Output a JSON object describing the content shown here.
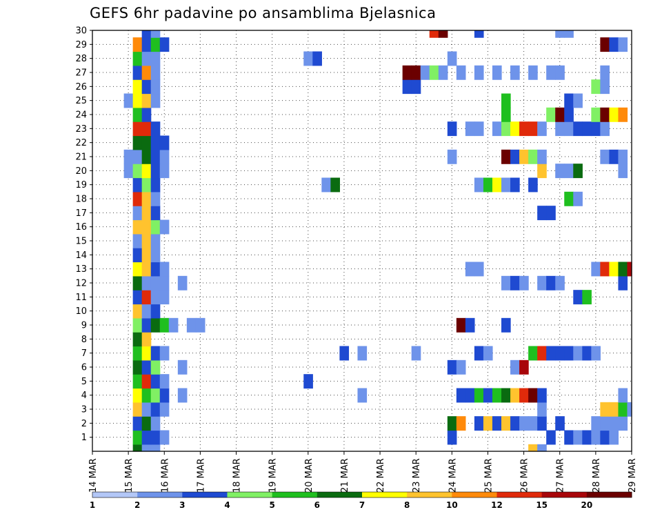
{
  "chart_data": {
    "type": "heatmap",
    "title": "GEFS 6hr padavine po ansamblima Bjelasnica",
    "xlabel": "",
    "ylabel": "",
    "x_tick_labels": [
      "14 MAR",
      "15 MAR",
      "16 MAR",
      "17 MAR",
      "18 MAR",
      "19 MAR",
      "20 MAR",
      "21 MAR",
      "22 MAR",
      "23 MAR",
      "24 MAR",
      "25 MAR",
      "26 MAR",
      "27 MAR",
      "28 MAR",
      "29 MAR"
    ],
    "y_tick_labels": [
      "1",
      "2",
      "3",
      "4",
      "5",
      "6",
      "7",
      "8",
      "9",
      "10",
      "11",
      "12",
      "13",
      "14",
      "15",
      "16",
      "17",
      "18",
      "19",
      "20",
      "21",
      "22",
      "23",
      "24",
      "25",
      "26",
      "27",
      "28",
      "29",
      "30"
    ],
    "xlim_day": [
      14,
      29
    ],
    "ylim_member": [
      0,
      30
    ],
    "time_step_hours": 6,
    "grid": true,
    "colorbar": {
      "placement": "bottom",
      "tick_labels": [
        "1",
        "2",
        "3",
        "4",
        "5",
        "6",
        "7",
        "8",
        "10",
        "12",
        "15",
        "20"
      ],
      "colors": [
        "#b3c7f7",
        "#6e93ea",
        "#1f4ad1",
        "#80f064",
        "#1fbf1f",
        "#0a6b10",
        "#ffff00",
        "#ffc32e",
        "#ff8a0a",
        "#e02a0a",
        "#a8060a",
        "#6b0000"
      ]
    },
    "members": {
      "30": [
        [
          15.5,
          2
        ],
        [
          15.75,
          1
        ],
        [
          23.5,
          9
        ],
        [
          23.75,
          11
        ],
        [
          24.75,
          2
        ],
        [
          27.0,
          1
        ],
        [
          27.25,
          1
        ]
      ],
      "29": [
        [
          15.25,
          8
        ],
        [
          15.5,
          2
        ],
        [
          15.75,
          4
        ],
        [
          16.0,
          2
        ],
        [
          28.25,
          11
        ],
        [
          28.5,
          2
        ],
        [
          28.75,
          1
        ]
      ],
      "28": [
        [
          15.25,
          4
        ],
        [
          15.5,
          1
        ],
        [
          15.75,
          1
        ],
        [
          20.0,
          1
        ],
        [
          20.25,
          2
        ],
        [
          24.0,
          1
        ]
      ],
      "27": [
        [
          15.25,
          2
        ],
        [
          15.5,
          8
        ],
        [
          15.75,
          1
        ],
        [
          22.75,
          11
        ],
        [
          23.0,
          11
        ],
        [
          23.25,
          1
        ],
        [
          23.5,
          3
        ],
        [
          23.75,
          1
        ],
        [
          24.25,
          1
        ],
        [
          24.75,
          1
        ],
        [
          25.25,
          1
        ],
        [
          25.75,
          1
        ],
        [
          26.25,
          1
        ],
        [
          26.75,
          1
        ],
        [
          27.0,
          1
        ],
        [
          28.25,
          1
        ]
      ],
      "26": [
        [
          15.25,
          6
        ],
        [
          15.5,
          2
        ],
        [
          15.75,
          1
        ],
        [
          22.75,
          2
        ],
        [
          23.0,
          2
        ],
        [
          28.0,
          3
        ],
        [
          28.25,
          1
        ]
      ],
      "25": [
        [
          15.0,
          1
        ],
        [
          15.25,
          6
        ],
        [
          15.5,
          7
        ],
        [
          15.75,
          1
        ],
        [
          25.5,
          4
        ],
        [
          27.25,
          2
        ],
        [
          27.5,
          1
        ]
      ],
      "24": [
        [
          15.25,
          4
        ],
        [
          15.5,
          2
        ],
        [
          25.5,
          4
        ],
        [
          26.75,
          3
        ],
        [
          27.0,
          11
        ],
        [
          27.25,
          2
        ],
        [
          28.0,
          3
        ],
        [
          28.25,
          11
        ],
        [
          28.5,
          6
        ],
        [
          28.75,
          8
        ]
      ],
      "23": [
        [
          15.25,
          9
        ],
        [
          15.5,
          9
        ],
        [
          15.75,
          2
        ],
        [
          24.0,
          2
        ],
        [
          24.5,
          1
        ],
        [
          24.75,
          1
        ],
        [
          25.25,
          1
        ],
        [
          25.5,
          3
        ],
        [
          25.75,
          6
        ],
        [
          26.0,
          9
        ],
        [
          26.25,
          9
        ],
        [
          26.5,
          1
        ],
        [
          27.0,
          1
        ],
        [
          27.25,
          1
        ],
        [
          27.5,
          2
        ],
        [
          27.75,
          2
        ],
        [
          28.0,
          2
        ],
        [
          28.25,
          1
        ]
      ],
      "22": [
        [
          15.25,
          5
        ],
        [
          15.5,
          5
        ],
        [
          15.75,
          2
        ],
        [
          16.0,
          2
        ]
      ],
      "21": [
        [
          15.0,
          1
        ],
        [
          15.25,
          1
        ],
        [
          15.5,
          5
        ],
        [
          15.75,
          2
        ],
        [
          16.0,
          1
        ],
        [
          24.0,
          1
        ],
        [
          25.5,
          11
        ],
        [
          25.75,
          2
        ],
        [
          26.0,
          7
        ],
        [
          26.25,
          3
        ],
        [
          26.5,
          1
        ],
        [
          28.25,
          1
        ],
        [
          28.5,
          2
        ],
        [
          28.75,
          1
        ]
      ],
      "20": [
        [
          15.0,
          1
        ],
        [
          15.25,
          3
        ],
        [
          15.5,
          6
        ],
        [
          15.75,
          2
        ],
        [
          16.0,
          1
        ],
        [
          26.5,
          7
        ],
        [
          27.0,
          1
        ],
        [
          27.25,
          1
        ],
        [
          27.5,
          5
        ],
        [
          28.75,
          1
        ]
      ],
      "19": [
        [
          15.25,
          2
        ],
        [
          15.5,
          3
        ],
        [
          15.75,
          2
        ],
        [
          20.5,
          1
        ],
        [
          20.75,
          5
        ],
        [
          24.75,
          1
        ],
        [
          25.0,
          4
        ],
        [
          25.25,
          6
        ],
        [
          25.5,
          1
        ],
        [
          25.75,
          2
        ],
        [
          26.25,
          2
        ]
      ],
      "18": [
        [
          15.25,
          9
        ],
        [
          15.5,
          7
        ],
        [
          15.75,
          1
        ],
        [
          27.25,
          4
        ],
        [
          27.5,
          1
        ]
      ],
      "17": [
        [
          15.25,
          1
        ],
        [
          15.5,
          7
        ],
        [
          15.75,
          2
        ],
        [
          26.5,
          2
        ],
        [
          26.75,
          2
        ]
      ],
      "16": [
        [
          15.25,
          7
        ],
        [
          15.5,
          7
        ],
        [
          15.75,
          3
        ],
        [
          16.0,
          1
        ]
      ],
      "15": [
        [
          15.25,
          1
        ],
        [
          15.5,
          7
        ],
        [
          15.75,
          1
        ]
      ],
      "14": [
        [
          15.25,
          2
        ],
        [
          15.5,
          7
        ],
        [
          15.75,
          1
        ]
      ],
      "13": [
        [
          15.25,
          6
        ],
        [
          15.5,
          7
        ],
        [
          15.75,
          2
        ],
        [
          16.0,
          1
        ],
        [
          24.5,
          1
        ],
        [
          24.75,
          1
        ],
        [
          28.0,
          1
        ],
        [
          28.25,
          9
        ],
        [
          28.5,
          6
        ],
        [
          28.75,
          5
        ],
        [
          29.0,
          10
        ]
      ],
      "12": [
        [
          15.25,
          5
        ],
        [
          15.5,
          1
        ],
        [
          15.75,
          1
        ],
        [
          16.0,
          1
        ],
        [
          16.5,
          1
        ],
        [
          25.5,
          1
        ],
        [
          25.75,
          2
        ],
        [
          26.0,
          1
        ],
        [
          26.5,
          1
        ],
        [
          26.75,
          2
        ],
        [
          27.0,
          1
        ],
        [
          28.75,
          2
        ]
      ],
      "11": [
        [
          15.25,
          2
        ],
        [
          15.5,
          9
        ],
        [
          15.75,
          1
        ],
        [
          16.0,
          1
        ],
        [
          27.5,
          2
        ],
        [
          27.75,
          4
        ]
      ],
      "10": [
        [
          15.25,
          7
        ],
        [
          15.5,
          1
        ],
        [
          15.75,
          2
        ]
      ],
      "9": [
        [
          15.25,
          3
        ],
        [
          15.5,
          2
        ],
        [
          15.75,
          5
        ],
        [
          16.0,
          4
        ],
        [
          16.25,
          1
        ],
        [
          16.75,
          1
        ],
        [
          17.0,
          1
        ],
        [
          24.25,
          11
        ],
        [
          24.5,
          2
        ],
        [
          25.5,
          2
        ]
      ],
      "8": [
        [
          15.25,
          5
        ],
        [
          15.5,
          7
        ]
      ],
      "7": [
        [
          15.25,
          4
        ],
        [
          15.5,
          6
        ],
        [
          15.75,
          2
        ],
        [
          16.0,
          1
        ],
        [
          21.0,
          2
        ],
        [
          21.5,
          1
        ],
        [
          23.0,
          1
        ],
        [
          24.75,
          2
        ],
        [
          25.0,
          1
        ],
        [
          26.25,
          4
        ],
        [
          26.5,
          9
        ],
        [
          26.75,
          2
        ],
        [
          27.0,
          2
        ],
        [
          27.25,
          2
        ],
        [
          27.5,
          1
        ],
        [
          27.75,
          2
        ],
        [
          28.0,
          1
        ]
      ],
      "6": [
        [
          15.25,
          5
        ],
        [
          15.5,
          2
        ],
        [
          15.75,
          3
        ],
        [
          16.5,
          1
        ],
        [
          24.0,
          2
        ],
        [
          24.25,
          1
        ],
        [
          25.75,
          1
        ],
        [
          26.0,
          10
        ]
      ],
      "5": [
        [
          15.25,
          4
        ],
        [
          15.5,
          9
        ],
        [
          15.75,
          2
        ],
        [
          16.0,
          1
        ],
        [
          20.0,
          2
        ]
      ],
      "4": [
        [
          15.25,
          6
        ],
        [
          15.5,
          4
        ],
        [
          15.75,
          3
        ],
        [
          16.0,
          2
        ],
        [
          16.5,
          1
        ],
        [
          21.5,
          1
        ],
        [
          24.25,
          2
        ],
        [
          24.5,
          2
        ],
        [
          24.75,
          4
        ],
        [
          25.0,
          2
        ],
        [
          25.25,
          4
        ],
        [
          25.5,
          5
        ],
        [
          25.75,
          7
        ],
        [
          26.0,
          9
        ],
        [
          26.25,
          11
        ],
        [
          26.5,
          2
        ],
        [
          28.75,
          1
        ]
      ],
      "3": [
        [
          15.25,
          7
        ],
        [
          15.5,
          1
        ],
        [
          15.75,
          2
        ],
        [
          16.0,
          1
        ],
        [
          26.5,
          1
        ],
        [
          28.25,
          7
        ],
        [
          28.5,
          7
        ],
        [
          28.75,
          4
        ],
        [
          29.0,
          1
        ]
      ],
      "2": [
        [
          15.25,
          2
        ],
        [
          15.5,
          5
        ],
        [
          15.75,
          1
        ],
        [
          24.0,
          5
        ],
        [
          24.25,
          8
        ],
        [
          24.75,
          2
        ],
        [
          25.0,
          7
        ],
        [
          25.25,
          2
        ],
        [
          25.5,
          7
        ],
        [
          25.75,
          2
        ],
        [
          26.0,
          1
        ],
        [
          26.25,
          1
        ],
        [
          26.5,
          2
        ],
        [
          27.0,
          2
        ],
        [
          28.0,
          1
        ],
        [
          28.25,
          1
        ],
        [
          28.5,
          1
        ],
        [
          28.75,
          1
        ]
      ],
      "1": [
        [
          15.25,
          4
        ],
        [
          15.5,
          2
        ],
        [
          15.75,
          2
        ],
        [
          16.0,
          1
        ],
        [
          24.0,
          2
        ],
        [
          26.75,
          2
        ],
        [
          27.25,
          2
        ],
        [
          27.5,
          1
        ],
        [
          27.75,
          2
        ],
        [
          28.0,
          1
        ],
        [
          28.25,
          2
        ],
        [
          28.5,
          1
        ]
      ],
      "0": [
        [
          15.25,
          5
        ],
        [
          15.5,
          1
        ],
        [
          15.75,
          1
        ],
        [
          26.25,
          7
        ],
        [
          26.5,
          1
        ]
      ]
    }
  }
}
